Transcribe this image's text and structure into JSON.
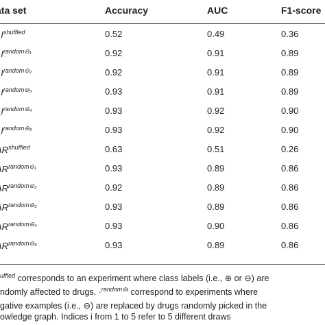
{
  "table": {
    "headers": {
      "dataset": "ata set",
      "accuracy": "Accuracy",
      "auc": "AUC",
      "f1": "F1-score"
    },
    "rows": [
      {
        "name": "_I",
        "sup": "shuffled",
        "accuracy": "0.52",
        "auc": "0.49",
        "f1": "0.36"
      },
      {
        "name": "_I",
        "sup": "random⊖₁",
        "accuracy": "0.92",
        "auc": "0.91",
        "f1": "0.89"
      },
      {
        "name": "_I",
        "sup": "random⊖₂",
        "accuracy": "0.92",
        "auc": "0.91",
        "f1": "0.89"
      },
      {
        "name": "_I",
        "sup": "random⊖₃",
        "accuracy": "0.93",
        "auc": "0.91",
        "f1": "0.89"
      },
      {
        "name": "_I",
        "sup": "random⊖₄",
        "accuracy": "0.93",
        "auc": "0.92",
        "f1": "0.90"
      },
      {
        "name": "_I",
        "sup": "random⊖₅",
        "accuracy": "0.93",
        "auc": "0.92",
        "f1": "0.90"
      },
      {
        "name": "AR",
        "sup": "shuffled",
        "accuracy": "0.63",
        "auc": "0.51",
        "f1": "0.26"
      },
      {
        "name": "AR",
        "sup": "random⊖₁",
        "accuracy": "0.93",
        "auc": "0.89",
        "f1": "0.86"
      },
      {
        "name": "AR",
        "sup": "random⊖₂",
        "accuracy": "0.92",
        "auc": "0.89",
        "f1": "0.86"
      },
      {
        "name": "AR",
        "sup": "random⊖₃",
        "accuracy": "0.93",
        "auc": "0.89",
        "f1": "0.86"
      },
      {
        "name": "AR",
        "sup": "random⊖₄",
        "accuracy": "0.93",
        "auc": "0.90",
        "f1": "0.86"
      },
      {
        "name": "AR",
        "sup": "random⊖₅",
        "accuracy": "0.93",
        "auc": "0.89",
        "f1": "0.86"
      }
    ]
  },
  "footnote": {
    "line1_sup": "uffled",
    "line1_text": " corresponds to an experiment where class labels (i.e., ⊕ or ⊖) are",
    "line2": "ndomly affected to drugs. ·",
    "line2_sup": "random⊖ᵢ",
    "line2_text": " correspond to experiments where",
    "line3_a": "gative examples (i.e., ⊖)",
    "line3_sup": "",
    "line3_b": " are replaced by drugs randomly picked in the",
    "line4": "owledge graph. Indices i from 1 to 5 refer to 5 different draws"
  }
}
